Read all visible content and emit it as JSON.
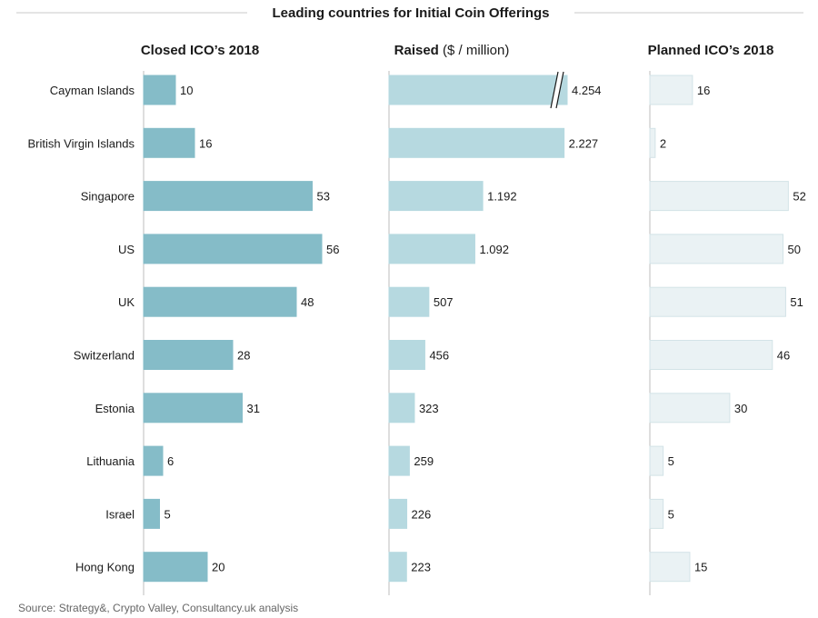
{
  "chart_data": {
    "type": "bar",
    "title": "Leading countries for Initial Coin Offerings",
    "categories": [
      "Cayman Islands",
      "British Virgin Islands",
      "Singapore",
      "US",
      "UK",
      "Switzerland",
      "Estonia",
      "Lithuania",
      "Israel",
      "Hong Kong"
    ],
    "panels": [
      {
        "title_bold": "Closed ICO’s 2018",
        "title_rest": "",
        "color": "#85bcc8",
        "stroke": "#85bcc8",
        "values": [
          10,
          16,
          53,
          56,
          48,
          28,
          31,
          6,
          5,
          20
        ],
        "labels": [
          "10",
          "16",
          "53",
          "56",
          "48",
          "28",
          "31",
          "6",
          "5",
          "20"
        ]
      },
      {
        "title_bold": "Raised",
        "title_rest": " ($ / million)",
        "color": "#b6d9e0",
        "stroke": "#b6d9e0",
        "values": [
          4254,
          2227,
          1192,
          1092,
          507,
          456,
          323,
          259,
          226,
          223
        ],
        "labels": [
          "4.254",
          "2.227",
          "1.192",
          "1.092",
          "507",
          "456",
          "323",
          "259",
          "226",
          "223"
        ],
        "axis_break_category": "Cayman Islands"
      },
      {
        "title_bold": "Planned ICO’s 2018",
        "title_rest": "",
        "color": "#eaf2f4",
        "stroke": "#d3e3e7",
        "values": [
          16,
          2,
          52,
          50,
          51,
          46,
          30,
          5,
          5,
          15
        ],
        "labels": [
          "16",
          "2",
          "52",
          "50",
          "51",
          "46",
          "30",
          "5",
          "5",
          "15"
        ]
      }
    ],
    "source": "Source: Strategy&, Crypto Valley, Consultancy.uk analysis"
  }
}
